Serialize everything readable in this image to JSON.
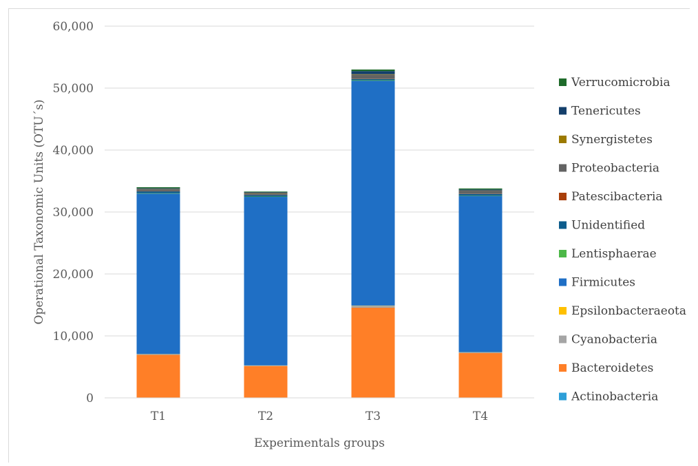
{
  "chart_data": {
    "type": "bar",
    "stacked": true,
    "title": "",
    "xlabel": "Experimentals groups",
    "ylabel": "Operational Taxonomic Units (OTU´s)",
    "ylim": [
      0,
      60000
    ],
    "yticks": [
      "0",
      "10,000",
      "20,000",
      "30,000",
      "40,000",
      "50,000",
      "60,000"
    ],
    "ytick_values": [
      0,
      10000,
      20000,
      30000,
      40000,
      50000,
      60000
    ],
    "grid": true,
    "legend_position": "right",
    "categories": [
      "T1",
      "T2",
      "T3",
      "T4"
    ],
    "series": [
      {
        "name": "Actinobacteria",
        "color": "#2e9fd8",
        "values": [
          40,
          30,
          60,
          40
        ]
      },
      {
        "name": "Bacteroidetes",
        "color": "#ff7f27",
        "values": [
          6900,
          5100,
          14500,
          7200
        ]
      },
      {
        "name": "Cyanobacteria",
        "color": "#a5a5a5",
        "values": [
          100,
          80,
          300,
          100
        ]
      },
      {
        "name": "Epsilonbacteraeota",
        "color": "#ffc000",
        "values": [
          30,
          30,
          40,
          30
        ]
      },
      {
        "name": "Firmicutes",
        "color": "#1f6fc5",
        "values": [
          25900,
          27200,
          36300,
          25200
        ]
      },
      {
        "name": "Lentisphaerae",
        "color": "#4cb848",
        "values": [
          60,
          60,
          80,
          50
        ]
      },
      {
        "name": "Unidentified",
        "color": "#0d5c8c",
        "values": [
          300,
          250,
          200,
          300
        ]
      },
      {
        "name": "Patescibacteria",
        "color": "#a93f0a",
        "values": [
          40,
          40,
          50,
          40
        ]
      },
      {
        "name": "Proteobacteria",
        "color": "#636363",
        "values": [
          330,
          280,
          650,
          480
        ]
      },
      {
        "name": "Synergistetes",
        "color": "#9c7a00",
        "values": [
          40,
          40,
          70,
          40
        ]
      },
      {
        "name": "Tenericutes",
        "color": "#143f6b",
        "values": [
          100,
          100,
          500,
          150
        ]
      },
      {
        "name": "Verrucomicrobia",
        "color": "#1f6b2b",
        "values": [
          160,
          90,
          250,
          170
        ]
      }
    ]
  }
}
